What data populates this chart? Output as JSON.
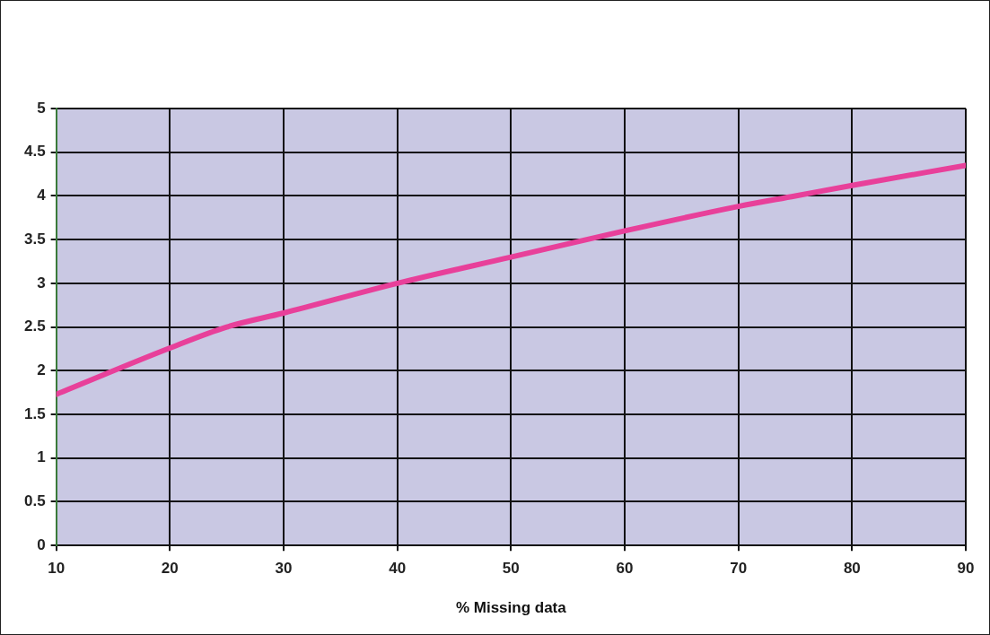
{
  "chart_data": {
    "type": "line",
    "xlabel": "% Missing data",
    "x": [
      10,
      20,
      25,
      30,
      40,
      50,
      60,
      70,
      75,
      80,
      90
    ],
    "series": [
      {
        "color": "#e8409a",
        "values": [
          1.73,
          2.26,
          2.5,
          2.66,
          3.0,
          3.3,
          3.6,
          3.88,
          4.0,
          4.12,
          4.35
        ]
      }
    ],
    "xlim": [
      10,
      90
    ],
    "xticks": [
      10,
      20,
      30,
      40,
      50,
      60,
      70,
      80,
      90
    ],
    "ylim": [
      0,
      5
    ],
    "yticks": [
      0,
      0.5,
      1,
      1.5,
      2,
      2.5,
      3,
      3.5,
      4,
      4.5,
      5
    ],
    "grid": true,
    "legend": false,
    "marker": "none",
    "line_style": "solid"
  }
}
